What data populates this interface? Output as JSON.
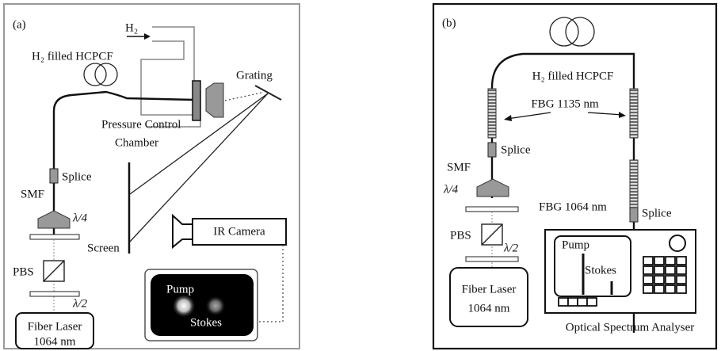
{
  "panel_a": {
    "label": "(a)",
    "gas": "H₂",
    "fiber": "H₂ filled HCPCF",
    "grating": "Grating",
    "chamber": [
      "Pressure Control",
      "Chamber"
    ],
    "splice": "Splice",
    "smf": "SMF",
    "quarter_wave": "λ/4",
    "pbs": "PBS",
    "half_wave": "λ/2",
    "screen": "Screen",
    "camera": "IR Camera",
    "laser": [
      "Fiber Laser",
      "1064 nm"
    ],
    "pump": "Pump",
    "stokes": "Stokes"
  },
  "panel_b": {
    "label": "(b)",
    "fiber": "H₂ filled HCPCF",
    "fbg_pair": "FBG 1135 nm",
    "splice_left": "Splice",
    "smf": "SMF",
    "quarter_wave": "λ/4",
    "pbs": "PBS",
    "half_wave": "λ/2",
    "laser": [
      "Fiber Laser",
      "1064 nm"
    ],
    "fbg_single": "FBG 1064 nm",
    "splice_right": "Splice",
    "pump": "Pump",
    "stokes": "Stokes",
    "analyser": "Optical Spectrum Analyser"
  }
}
